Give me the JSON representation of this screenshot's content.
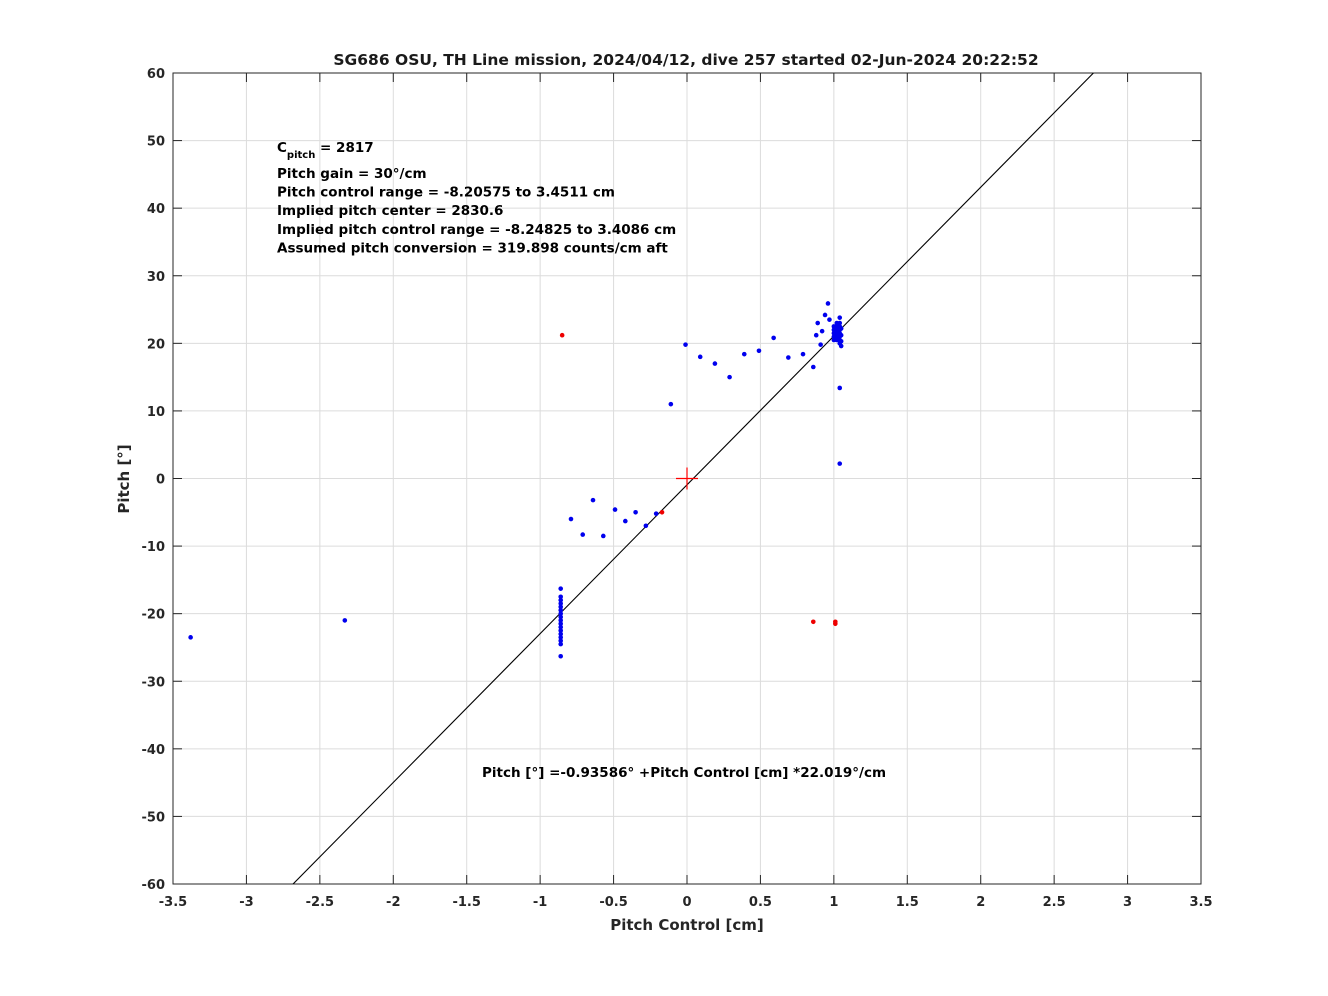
{
  "chart_data": {
    "type": "scatter",
    "title": "SG686 OSU, TH Line mission, 2024/04/12, dive 257 started 02-Jun-2024 20:22:52",
    "xlabel": "Pitch Control [cm]",
    "ylabel": "Pitch [°]",
    "xlim": [
      -3.5,
      3.5
    ],
    "ylim": [
      -60,
      60
    ],
    "xticks": [
      -3.5,
      -3,
      -2.5,
      -2,
      -1.5,
      -1,
      -0.5,
      0,
      0.5,
      1,
      1.5,
      2,
      2.5,
      3,
      3.5
    ],
    "yticks": [
      -60,
      -50,
      -40,
      -30,
      -20,
      -10,
      0,
      10,
      20,
      30,
      40,
      50,
      60
    ],
    "xtick_labels": [
      "-3.5",
      "-3",
      "-2.5",
      "-2",
      "-1.5",
      "-1",
      "-0.5",
      "0",
      "0.5",
      "1",
      "1.5",
      "2",
      "2.5",
      "3",
      "3.5"
    ],
    "ytick_labels": [
      "-60",
      "-50",
      "-40",
      "-30",
      "-20",
      "-10",
      "0",
      "10",
      "20",
      "30",
      "40",
      "50",
      "60"
    ],
    "grid": true,
    "colors": {
      "points": "#0000ee",
      "outliers": "#ee0000",
      "fit": "#000000",
      "center": "#ff0000"
    },
    "fit_line": {
      "intercept": -0.93586,
      "slope": 22.019
    },
    "center_marker": {
      "x": 0,
      "y": 0
    },
    "annotations": {
      "cpitch_symbol": "C",
      "cpitch_sub": "pitch",
      "cpitch_value": " = 2817",
      "lines": [
        "Pitch gain = 30°/cm",
        "Pitch control range = -8.20575 to 3.4511 cm",
        "Implied pitch center = 2830.6",
        "Implied pitch control range = -8.24825 to 3.4086 cm",
        "Assumed pitch conversion = 319.898 counts/cm aft"
      ],
      "fit_equation": "Pitch [°] =-0.93586° +Pitch Control [cm] *22.019°/cm"
    },
    "series": [
      {
        "color": "#0000ee",
        "points": [
          [
            -3.38,
            -23.5
          ],
          [
            -2.33,
            -21
          ],
          [
            -0.86,
            -16.3
          ],
          [
            -0.86,
            -17.5
          ],
          [
            -0.86,
            -18
          ],
          [
            -0.86,
            -18.5
          ],
          [
            -0.86,
            -19
          ],
          [
            -0.86,
            -19.5
          ],
          [
            -0.86,
            -20
          ],
          [
            -0.86,
            -20.5
          ],
          [
            -0.86,
            -21
          ],
          [
            -0.86,
            -21.5
          ],
          [
            -0.86,
            -22
          ],
          [
            -0.86,
            -22.5
          ],
          [
            -0.86,
            -23
          ],
          [
            -0.86,
            -23.5
          ],
          [
            -0.86,
            -24
          ],
          [
            -0.86,
            -24.5
          ],
          [
            -0.86,
            -26.3
          ],
          [
            -0.79,
            -6
          ],
          [
            -0.71,
            -8.3
          ],
          [
            -0.64,
            -3.2
          ],
          [
            -0.57,
            -8.5
          ],
          [
            -0.49,
            -4.6
          ],
          [
            -0.42,
            -6.3
          ],
          [
            -0.35,
            -5
          ],
          [
            -0.28,
            -7
          ],
          [
            -0.21,
            -5.2
          ],
          [
            -0.11,
            11
          ],
          [
            -0.01,
            19.8
          ],
          [
            0.09,
            18
          ],
          [
            0.19,
            17
          ],
          [
            0.29,
            15
          ],
          [
            0.39,
            18.4
          ],
          [
            0.49,
            18.9
          ],
          [
            0.59,
            20.8
          ],
          [
            0.69,
            17.9
          ],
          [
            0.79,
            18.4
          ],
          [
            0.86,
            16.5
          ],
          [
            0.88,
            21.2
          ],
          [
            0.89,
            23
          ],
          [
            0.91,
            19.8
          ],
          [
            0.92,
            21.8
          ],
          [
            0.94,
            24.2
          ],
          [
            0.96,
            25.9
          ],
          [
            0.97,
            23.5
          ],
          [
            1.0,
            20.5
          ],
          [
            1.0,
            21
          ],
          [
            1.0,
            21.5
          ],
          [
            1.0,
            22
          ],
          [
            1.0,
            22.5
          ],
          [
            1.02,
            20.5
          ],
          [
            1.02,
            21
          ],
          [
            1.02,
            21.5
          ],
          [
            1.02,
            22
          ],
          [
            1.02,
            22.5
          ],
          [
            1.02,
            23
          ],
          [
            1.04,
            20
          ],
          [
            1.04,
            20.5
          ],
          [
            1.04,
            21
          ],
          [
            1.04,
            21.5
          ],
          [
            1.04,
            22
          ],
          [
            1.04,
            22.5
          ],
          [
            1.04,
            23
          ],
          [
            1.04,
            23.8
          ],
          [
            1.05,
            19.6
          ],
          [
            1.05,
            20.3
          ],
          [
            1.05,
            21.2
          ],
          [
            1.05,
            22.2
          ],
          [
            1.04,
            13.4
          ],
          [
            1.04,
            2.2
          ]
        ]
      },
      {
        "color": "#ee0000",
        "points": [
          [
            -0.85,
            21.2
          ],
          [
            -0.17,
            -5
          ],
          [
            0.86,
            -21.2
          ],
          [
            1.01,
            -21.2
          ],
          [
            1.01,
            -21.5
          ]
        ]
      }
    ]
  }
}
